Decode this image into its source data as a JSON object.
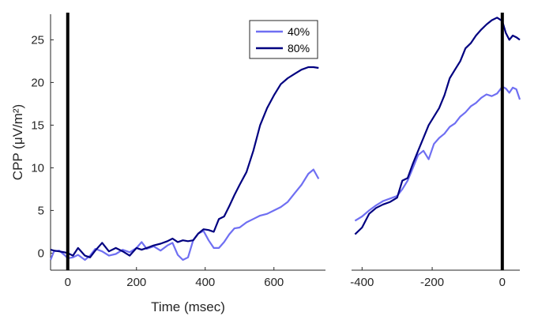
{
  "chart_data": [
    {
      "type": "line",
      "panel": "stimulus-locked",
      "xlabel": "Time (msec)",
      "ylabel": "CPP (μV/m²)",
      "xlim": [
        -50,
        750
      ],
      "ylim": [
        -2,
        28
      ],
      "xticks": [
        0,
        200,
        400,
        600
      ],
      "yticks": [
        0,
        5,
        10,
        15,
        20,
        25
      ],
      "grid": false,
      "legend_position": "top-right",
      "vertical_marker_x": 0,
      "series": [
        {
          "name": "40%",
          "color": "#6f6ff2",
          "x": [
            -50,
            -40,
            -25,
            -10,
            0,
            15,
            30,
            50,
            65,
            80,
            100,
            120,
            140,
            160,
            180,
            200,
            215,
            230,
            250,
            270,
            290,
            305,
            320,
            335,
            350,
            365,
            380,
            395,
            410,
            425,
            440,
            455,
            470,
            485,
            500,
            520,
            540,
            560,
            580,
            600,
            620,
            640,
            660,
            680,
            700,
            715,
            730
          ],
          "y": [
            -0.8,
            0.2,
            0.3,
            -0.2,
            -0.6,
            -0.5,
            -0.2,
            -0.8,
            -0.3,
            0.5,
            0.2,
            -0.3,
            -0.1,
            0.4,
            0.1,
            0.6,
            1.3,
            0.5,
            0.8,
            0.3,
            0.9,
            1.2,
            -0.2,
            -0.8,
            -0.5,
            1.5,
            2.3,
            2.6,
            1.5,
            0.6,
            0.6,
            1.3,
            2.2,
            2.9,
            3.0,
            3.6,
            4.0,
            4.4,
            4.6,
            5.0,
            5.4,
            6.0,
            7.0,
            8.0,
            9.3,
            9.8,
            8.7
          ]
        },
        {
          "name": "80%",
          "color": "#000080",
          "x": [
            -50,
            -40,
            -25,
            -10,
            0,
            15,
            30,
            50,
            65,
            80,
            100,
            120,
            140,
            160,
            180,
            200,
            215,
            230,
            250,
            270,
            290,
            305,
            320,
            335,
            350,
            365,
            380,
            395,
            410,
            425,
            440,
            455,
            470,
            485,
            500,
            520,
            540,
            560,
            580,
            600,
            620,
            640,
            660,
            680,
            700,
            715,
            730
          ],
          "y": [
            0.4,
            0.3,
            0.2,
            0.1,
            0.0,
            -0.3,
            0.6,
            -0.3,
            -0.5,
            0.3,
            1.2,
            0.2,
            0.6,
            0.2,
            -0.3,
            0.6,
            0.4,
            0.6,
            0.9,
            1.1,
            1.4,
            1.7,
            1.3,
            1.5,
            1.4,
            1.5,
            2.3,
            2.8,
            2.7,
            2.5,
            4.0,
            4.3,
            5.5,
            6.8,
            8.0,
            9.5,
            12.0,
            15.0,
            17.0,
            18.5,
            19.8,
            20.5,
            21.0,
            21.5,
            21.8,
            21.8,
            21.7
          ]
        }
      ]
    },
    {
      "type": "line",
      "panel": "response-locked",
      "xlabel": "",
      "ylabel": "",
      "xlim": [
        -430,
        50
      ],
      "ylim": [
        -2,
        28
      ],
      "xticks": [
        -400,
        -200,
        0
      ],
      "yticks": [],
      "grid": false,
      "vertical_marker_x": 0,
      "series": [
        {
          "name": "40%",
          "color": "#6f6ff2",
          "x": [
            -420,
            -400,
            -380,
            -360,
            -340,
            -320,
            -300,
            -285,
            -270,
            -255,
            -240,
            -225,
            -210,
            -195,
            -180,
            -165,
            -150,
            -135,
            -120,
            -105,
            -90,
            -75,
            -60,
            -45,
            -30,
            -15,
            0,
            10,
            20,
            30,
            40,
            50
          ],
          "y": [
            3.8,
            4.3,
            5.0,
            5.6,
            6.1,
            6.4,
            6.7,
            7.5,
            8.5,
            10.0,
            11.5,
            12.0,
            11.0,
            12.8,
            13.5,
            14.0,
            14.8,
            15.2,
            16.0,
            16.5,
            17.2,
            17.6,
            18.2,
            18.6,
            18.4,
            18.7,
            19.5,
            19.3,
            18.8,
            19.4,
            19.2,
            18.0
          ]
        },
        {
          "name": "80%",
          "color": "#000080",
          "x": [
            -420,
            -400,
            -380,
            -360,
            -340,
            -320,
            -300,
            -285,
            -270,
            -255,
            -240,
            -225,
            -210,
            -195,
            -180,
            -165,
            -150,
            -135,
            -120,
            -105,
            -90,
            -75,
            -60,
            -45,
            -30,
            -15,
            0,
            10,
            20,
            30,
            40,
            50
          ],
          "y": [
            2.2,
            3.0,
            4.6,
            5.3,
            5.7,
            6.0,
            6.5,
            8.5,
            8.8,
            10.5,
            12.0,
            13.5,
            15.0,
            16.0,
            17.0,
            18.5,
            20.5,
            21.5,
            22.5,
            24.0,
            24.6,
            25.5,
            26.2,
            26.8,
            27.3,
            27.6,
            27.2,
            25.8,
            25.0,
            25.5,
            25.3,
            25.0
          ]
        }
      ]
    }
  ]
}
